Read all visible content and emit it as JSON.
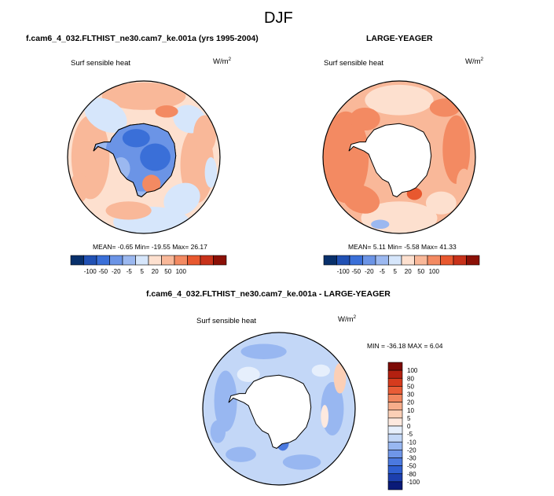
{
  "chart_data": [
    {
      "type": "heatmap",
      "projection": "south-polar-stereographic",
      "left_title": "f.cam6_4_032.FLTHIST_ne30.cam7_ke.001a (yrs 1995-2004)",
      "variable": "Surf sensible heat",
      "units_base": "W/m",
      "units_exp": "2",
      "stats": {
        "mean_label": "MEAN=",
        "mean": "-0.65",
        "min_label": "Min=",
        "min": "-19.55",
        "max_label": "Max=",
        "max": "26.17"
      },
      "colorbar_ticks": [
        "-100",
        "-50",
        "-20",
        "-5",
        "5",
        "20",
        "50",
        "100"
      ]
    },
    {
      "type": "heatmap",
      "projection": "south-polar-stereographic",
      "right_title": "LARGE-YEAGER",
      "variable": "Surf sensible heat",
      "units_base": "W/m",
      "units_exp": "2",
      "stats": {
        "mean_label": "MEAN=",
        "mean": "5.11",
        "min_label": "Min=",
        "min": "-5.58",
        "max_label": "Max=",
        "max": "41.33"
      },
      "colorbar_ticks": [
        "-100",
        "-50",
        "-20",
        "-5",
        "5",
        "20",
        "50",
        "100"
      ]
    },
    {
      "type": "heatmap",
      "projection": "south-polar-stereographic",
      "title": "f.cam6_4_032.FLTHIST_ne30.cam7_ke.001a - LARGE-YEAGER",
      "variable": "Surf sensible heat",
      "units_base": "W/m",
      "units_exp": "2",
      "stats": {
        "min_label": "MIN =",
        "min": "-36.18",
        "max_label": "MAX =",
        "max": "6.04"
      },
      "colorbar_ticks": [
        "100",
        "80",
        "50",
        "30",
        "20",
        "10",
        "5",
        "0",
        "-5",
        "-10",
        "-20",
        "-30",
        "-50",
        "-80",
        "-100"
      ]
    }
  ],
  "figure_title": "DJF",
  "colors": {
    "levels12": [
      "#08306b",
      "#2151b4",
      "#3a6fd8",
      "#6b94e6",
      "#9bb8f0",
      "#d6e6fb",
      "#fde0cf",
      "#f9b899",
      "#f38a62",
      "#e8582f",
      "#c8321a",
      "#8b1006"
    ],
    "levels16": [
      "#0a1a78",
      "#1c3fae",
      "#2f5fd1",
      "#4b79df",
      "#6f96e8",
      "#98b7f1",
      "#c3d7f7",
      "#e6effc",
      "#fde9df",
      "#fbcfb6",
      "#f7ad8b",
      "#f2865e",
      "#e95c36",
      "#d63b1d",
      "#b32010",
      "#7d0a05"
    ],
    "ocean_neutral": "#e8f0fb",
    "land": "#ffffff"
  }
}
